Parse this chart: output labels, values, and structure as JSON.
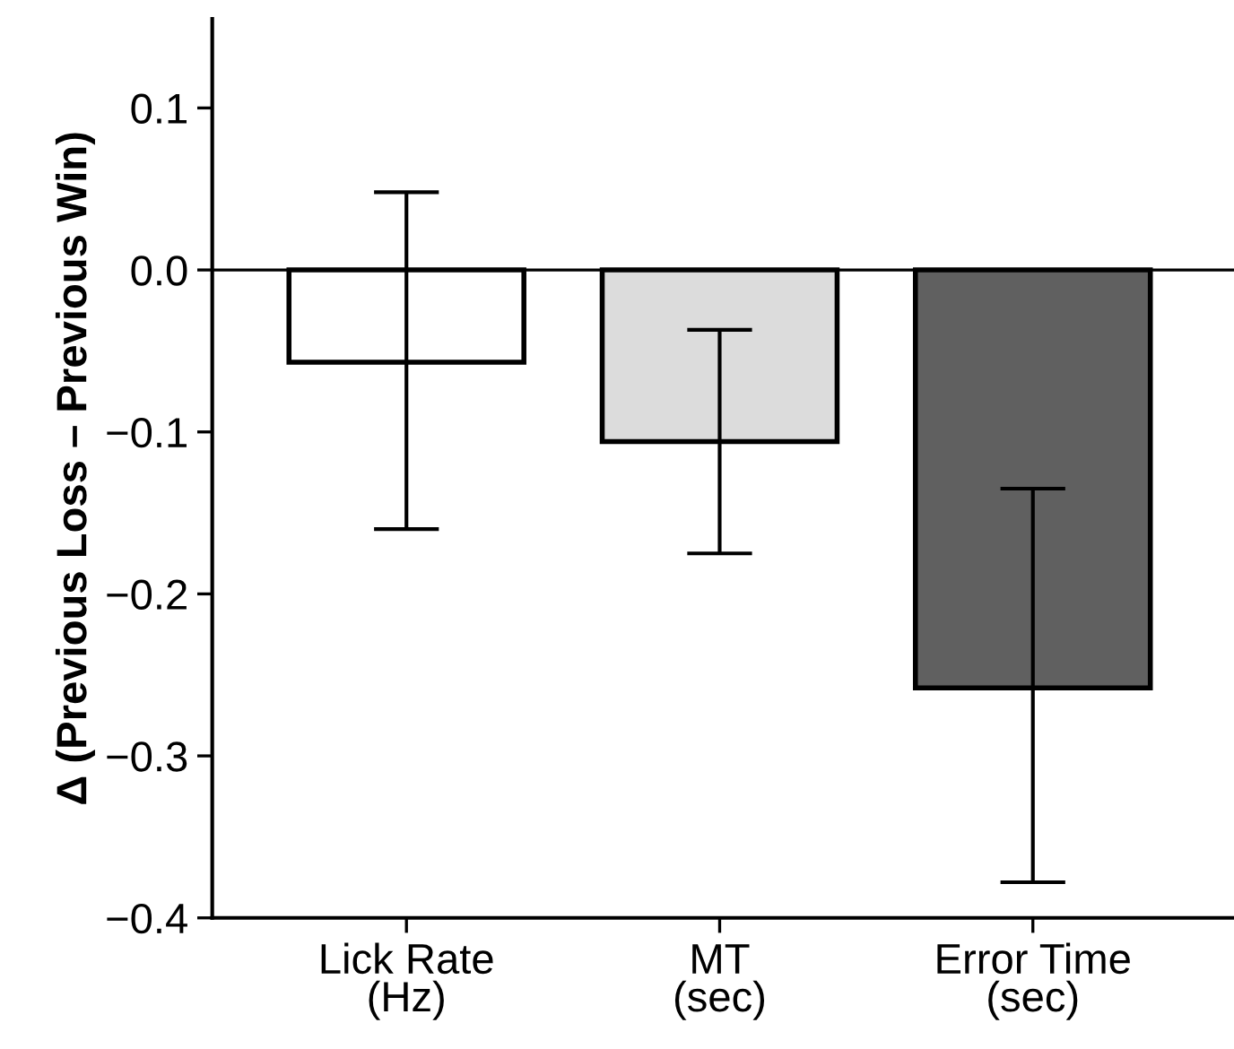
{
  "chart_data": {
    "type": "bar",
    "ylabel": "Δ (Previous Loss – Previous Win)",
    "categories": [
      "Lick Rate\n(Hz)",
      "MT\n(sec)",
      "Error Time\n(sec)"
    ],
    "values": [
      -0.057,
      -0.106,
      -0.258
    ],
    "colors": [
      "#ffffff",
      "#dcdcdc",
      "#606060"
    ],
    "errors": [
      [
        -0.16,
        0.048
      ],
      [
        -0.175,
        -0.037
      ],
      [
        -0.378,
        -0.135
      ]
    ],
    "ylim": [
      -0.4,
      0.155
    ],
    "yticks": [
      {
        "value": -0.4,
        "label": "−0.4"
      },
      {
        "value": -0.3,
        "label": "−0.3"
      },
      {
        "value": -0.2,
        "label": "−0.2"
      },
      {
        "value": -0.1,
        "label": "−0.1"
      },
      {
        "value": 0,
        "label": "0.0"
      },
      {
        "value": 0.1,
        "label": "0.1"
      }
    ],
    "ref_lines": [
      {
        "axis": "y",
        "value": 0,
        "color": "#000000"
      }
    ],
    "grid": false,
    "legend": false
  }
}
